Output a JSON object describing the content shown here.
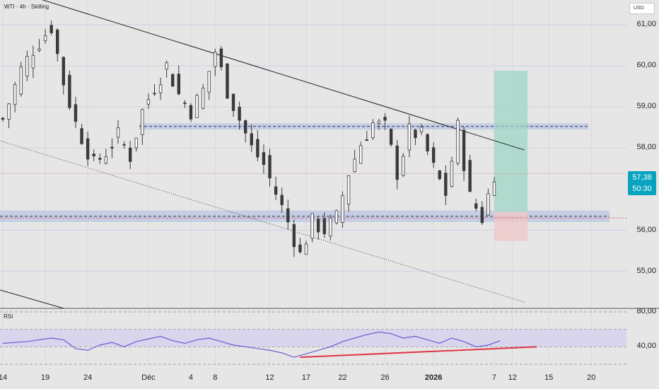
{
  "header": {
    "title": "WTI · 4h · Skilling",
    "currency_button": "USD"
  },
  "last_price": {
    "value": "57,38",
    "countdown": "50:30",
    "color": "#08a3c0"
  },
  "rsi_panel": {
    "title": "RSI",
    "levels": [
      "80,00",
      "40,00"
    ]
  },
  "colors": {
    "background": "#e6e6e6",
    "candle": "#3a3a3a",
    "zone": "#b9c5e0",
    "target_box": "#9ed6c4",
    "stop_box": "#f0c9c9",
    "rsi_line": "#6b5bd6",
    "rsi_divergence": "#e03545",
    "rsi_band": "#d6d3ec"
  },
  "chart_data": {
    "type": "candlestick",
    "y_ticks": [
      "61,00",
      "60,00",
      "59,00",
      "58,00",
      "56,00",
      "55,00"
    ],
    "x_ticks": [
      {
        "label": "14",
        "bold": false
      },
      {
        "label": "19",
        "bold": false
      },
      {
        "label": "24",
        "bold": false
      },
      {
        "label": "Déc",
        "bold": false
      },
      {
        "label": "4",
        "bold": false
      },
      {
        "label": "8",
        "bold": false
      },
      {
        "label": "12",
        "bold": false
      },
      {
        "label": "17",
        "bold": false
      },
      {
        "label": "22",
        "bold": false
      },
      {
        "label": "26",
        "bold": false
      },
      {
        "label": "2026",
        "bold": true
      },
      {
        "label": "7",
        "bold": false
      },
      {
        "label": "12",
        "bold": false
      },
      {
        "label": "15",
        "bold": false
      },
      {
        "label": "20",
        "bold": false
      }
    ],
    "ylim": [
      54.1,
      61.6
    ],
    "close_path": [
      [
        0,
        58.7
      ],
      [
        3,
        59.9
      ],
      [
        5,
        60.4
      ],
      [
        8,
        60.95
      ],
      [
        10,
        59.6
      ],
      [
        12,
        58.6
      ],
      [
        15,
        57.6
      ],
      [
        17,
        57.9
      ],
      [
        19,
        58.3
      ],
      [
        21,
        57.8
      ],
      [
        23,
        58.9
      ],
      [
        25,
        59.5
      ],
      [
        27,
        60.0
      ],
      [
        29,
        59.3
      ],
      [
        31,
        58.9
      ],
      [
        33,
        59.4
      ],
      [
        35,
        60.35
      ],
      [
        37,
        59.4
      ],
      [
        39,
        58.7
      ],
      [
        41,
        58.0
      ],
      [
        43,
        57.6
      ],
      [
        45,
        56.9
      ],
      [
        47,
        56.2
      ],
      [
        49,
        55.4
      ],
      [
        51,
        56.2
      ],
      [
        53,
        56.0
      ],
      [
        55,
        56.3
      ],
      [
        57,
        57.4
      ],
      [
        59,
        58.1
      ],
      [
        61,
        58.6
      ],
      [
        63,
        58.5
      ],
      [
        65,
        57.4
      ],
      [
        67,
        58.4
      ],
      [
        69,
        58.3
      ],
      [
        71,
        57.5
      ],
      [
        73,
        56.9
      ],
      [
        75,
        58.5
      ],
      [
        77,
        56.8
      ],
      [
        79,
        56.3
      ],
      [
        81,
        57.4
      ]
    ],
    "candle_count": 82,
    "horizontal_zones": [
      {
        "from": 58.45,
        "to": 58.6
      },
      {
        "from": 56.2,
        "to": 56.48
      }
    ],
    "trendlines": [
      {
        "style": "solid",
        "from": [
          61.95,
          -1.0
        ],
        "to": [
          57.95,
          86.0
        ]
      },
      {
        "style": "dotted",
        "from": [
          58.2,
          -1.0
        ],
        "to": [
          54.25,
          86.0
        ]
      }
    ],
    "position_tool": {
      "entry": 56.45,
      "target": 59.88,
      "stop": 55.74,
      "current_price": 57.38
    },
    "rsi": {
      "ylim": [
        20,
        80
      ],
      "upper": 60,
      "lower": 40,
      "series": [
        [
          0,
          44
        ],
        [
          4,
          46
        ],
        [
          8,
          50
        ],
        [
          10,
          48
        ],
        [
          12,
          38
        ],
        [
          14,
          36
        ],
        [
          16,
          42
        ],
        [
          18,
          45
        ],
        [
          20,
          40
        ],
        [
          22,
          46
        ],
        [
          24,
          49
        ],
        [
          26,
          52
        ],
        [
          28,
          47
        ],
        [
          30,
          44
        ],
        [
          32,
          48
        ],
        [
          34,
          50
        ],
        [
          36,
          46
        ],
        [
          38,
          42
        ],
        [
          40,
          40
        ],
        [
          42,
          38
        ],
        [
          44,
          36
        ],
        [
          46,
          33
        ],
        [
          48,
          28
        ],
        [
          50,
          32
        ],
        [
          52,
          36
        ],
        [
          54,
          40
        ],
        [
          56,
          46
        ],
        [
          58,
          50
        ],
        [
          60,
          54
        ],
        [
          62,
          57
        ],
        [
          64,
          55
        ],
        [
          66,
          50
        ],
        [
          68,
          52
        ],
        [
          70,
          48
        ],
        [
          72,
          44
        ],
        [
          74,
          50
        ],
        [
          76,
          46
        ],
        [
          78,
          40
        ],
        [
          80,
          42
        ],
        [
          82,
          47
        ]
      ],
      "divergence": {
        "from": [
          49,
          28
        ],
        "to": [
          88,
          40
        ]
      }
    }
  }
}
